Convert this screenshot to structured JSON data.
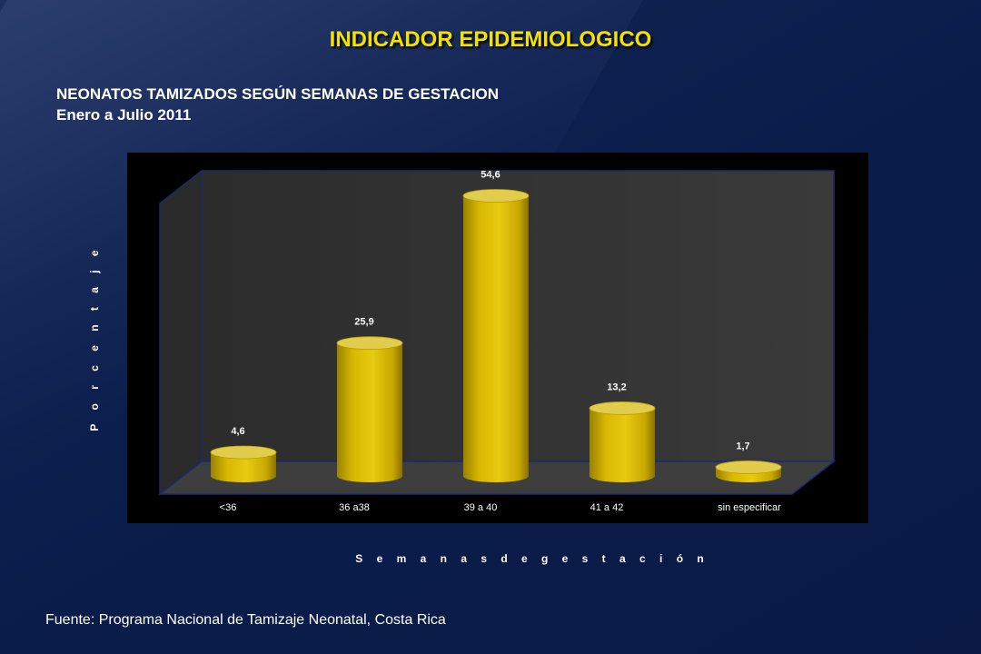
{
  "slide": {
    "title": "INDICADOR EPIDEMIOLOGICO",
    "subtitle_line1": "NEONATOS TAMIZADOS SEGÚN SEMANAS DE GESTACION",
    "subtitle_line2": "Enero  a  Julio 2011",
    "source": "Fuente: Programa Nacional de Tamizaje Neonatal, Costa Rica"
  },
  "chart_data": {
    "type": "bar",
    "style": "3d-cylinder",
    "categories": [
      "<36",
      "36 a38",
      "39 a 40",
      "41 a 42",
      "sin especificar"
    ],
    "values": [
      4.6,
      25.9,
      54.6,
      13.2,
      1.7
    ],
    "data_labels": [
      "4,6",
      "25,9",
      "54,6",
      "13,2",
      "1,7"
    ],
    "xlabel": "S e m a n a s   d e   g e s t a c i ó n",
    "ylabel": "P o r c e n t a j e",
    "ylim": [
      0,
      60
    ],
    "grid": false,
    "legend": "none",
    "colors": {
      "bar": "#d8b800",
      "bar_top": "#e2cc4c",
      "plot_background": "#333333",
      "chart_background": "#000000",
      "title": "#f4e100",
      "text": "#ffffff"
    }
  }
}
